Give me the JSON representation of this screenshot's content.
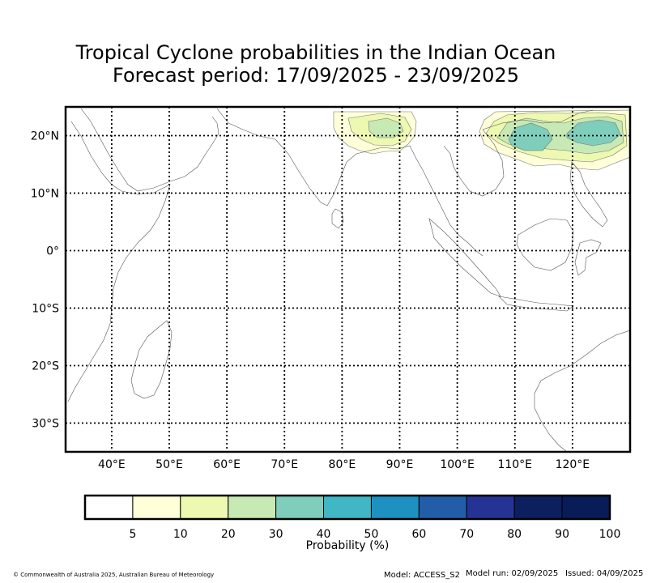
{
  "title": {
    "line1": "Tropical Cyclone probabilities in the Indian Ocean",
    "line2": "Forecast period: 17/09/2025 - 23/09/2025"
  },
  "map": {
    "lon_range": [
      32,
      130
    ],
    "lat_range": [
      -35,
      25
    ],
    "lat_ticks": [
      {
        "value": 20,
        "label": "20°N"
      },
      {
        "value": 10,
        "label": "10°N"
      },
      {
        "value": 0,
        "label": "0°"
      },
      {
        "value": -10,
        "label": "10°S"
      },
      {
        "value": -20,
        "label": "20°S"
      },
      {
        "value": -30,
        "label": "30°S"
      }
    ],
    "lon_ticks": [
      {
        "value": 40,
        "label": "40°E"
      },
      {
        "value": 50,
        "label": "50°E"
      },
      {
        "value": 60,
        "label": "60°E"
      },
      {
        "value": 70,
        "label": "70°E"
      },
      {
        "value": 80,
        "label": "80°E"
      },
      {
        "value": 90,
        "label": "90°E"
      },
      {
        "value": 100,
        "label": "100°E"
      },
      {
        "value": 110,
        "label": "110°E"
      },
      {
        "value": 120,
        "label": "120°E"
      }
    ],
    "grid": "dotted"
  },
  "colorbar": {
    "label": "Probability (%)",
    "boundaries": [
      "5",
      "10",
      "20",
      "30",
      "40",
      "50",
      "60",
      "70",
      "80",
      "90",
      "100"
    ],
    "colors": [
      "#ffffff",
      "#ffffd9",
      "#edf8b1",
      "#c7e9b4",
      "#7fcdbb",
      "#41b6c4",
      "#1d91c0",
      "#225ea8",
      "#253494",
      "#0c2060",
      "#081d58"
    ]
  },
  "probability_colors": {
    "p5": "#ffffd9",
    "p10": "#edf8b1",
    "p20": "#c7e9b4",
    "p30": "#7fcdbb"
  },
  "footer": {
    "copyright": "© Commonwealth of Australia 2025, Australian Bureau of Meteorology",
    "model": "Model: ACCESS_S2",
    "model_run": "Model run: 02/09/2025",
    "issued": "Issued: 04/09/2025"
  }
}
